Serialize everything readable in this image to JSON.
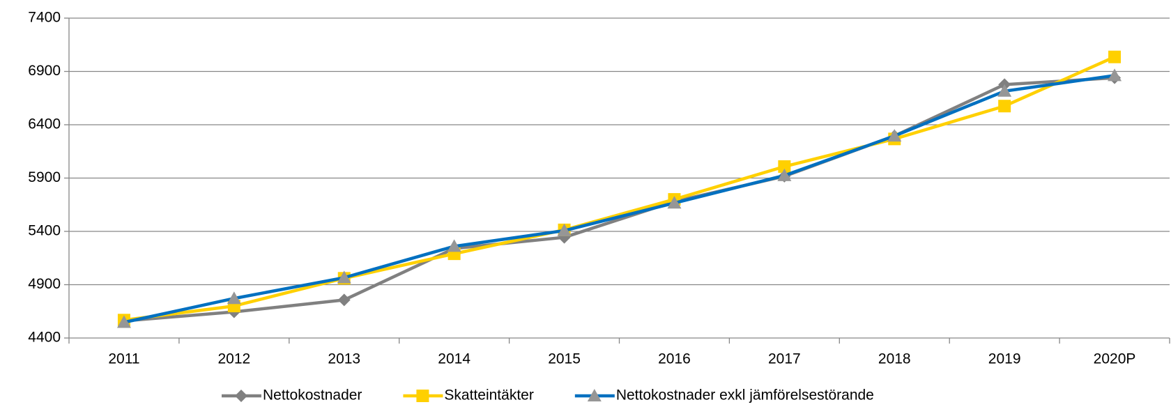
{
  "chart_data": {
    "type": "line",
    "categories": [
      "2011",
      "2012",
      "2013",
      "2014",
      "2015",
      "2016",
      "2017",
      "2018",
      "2019",
      "2020P"
    ],
    "series": [
      {
        "name": "Nettokostnader",
        "color": "#808080",
        "marker": "diamond",
        "marker_color": "#808080",
        "values": [
          4560,
          4645,
          4757,
          5240,
          5344,
          5680,
          5917,
          6295,
          6777,
          6840
        ]
      },
      {
        "name": "Skatteintäkter",
        "color": "#ffd000",
        "marker": "square",
        "marker_color": "#ffd000",
        "values": [
          4568,
          4700,
          4960,
          5190,
          5414,
          5700,
          6008,
          6267,
          6575,
          7036
        ]
      },
      {
        "name": "Nettokostnader exkl jämförelsestörande",
        "color": "#0070c0",
        "marker": "triangle",
        "marker_color": "#969696",
        "values": [
          4547,
          4771,
          4966,
          5260,
          5407,
          5666,
          5924,
          6295,
          6715,
          6862
        ]
      }
    ],
    "ylim": [
      4400,
      7400
    ],
    "yticks": [
      4400,
      4900,
      5400,
      5900,
      6400,
      6900,
      7400
    ],
    "grid": true,
    "legend": "bottom"
  }
}
